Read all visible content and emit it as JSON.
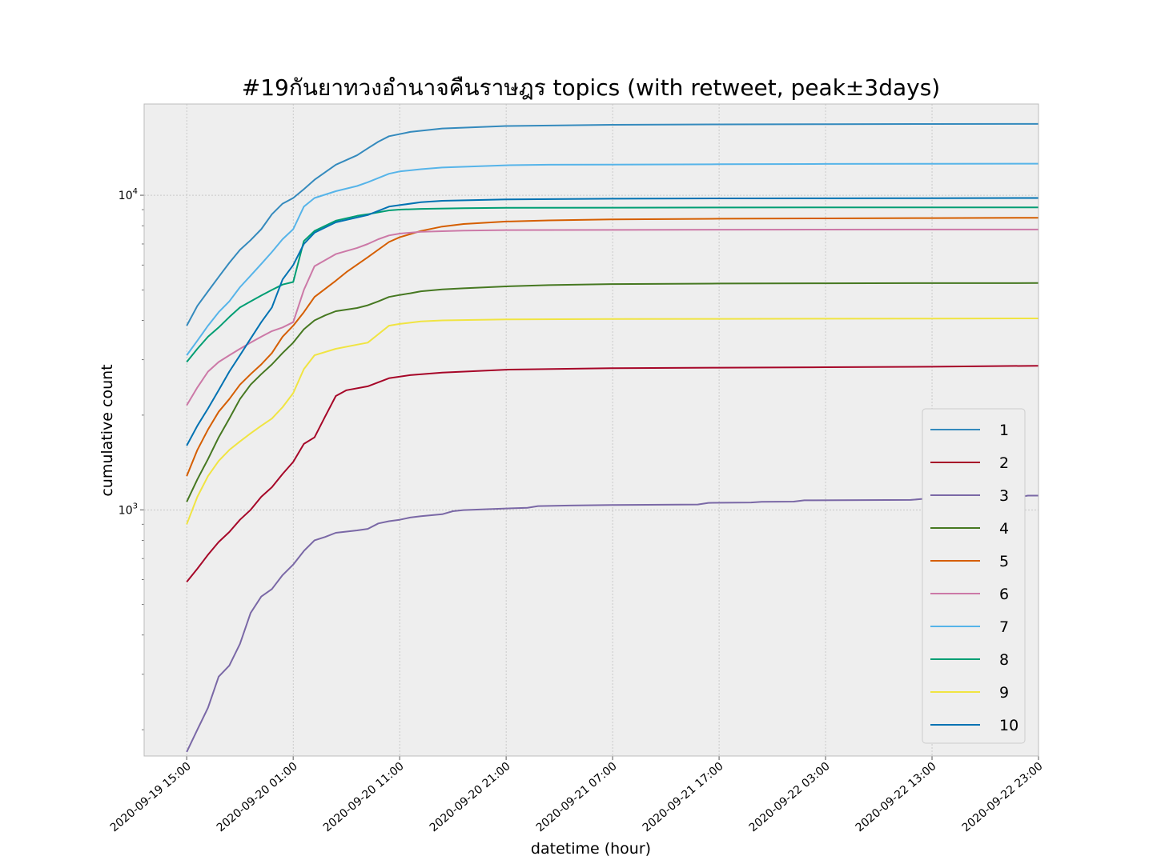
{
  "chart_data": {
    "type": "line",
    "title": "#19กันยาทวงอำนาจคืนราษฎร topics (with retweet, peak±3days)",
    "xlabel": "datetime (hour)",
    "ylabel": "cumulative count",
    "yscale": "log",
    "ylim": [
      165,
      19500
    ],
    "xlim_hours": [
      -4,
      80
    ],
    "x_start": "2020-09-19 15:00",
    "grid": true,
    "legend_position": "right",
    "x_ticks": [
      {
        "label": "2020-09-19 15:00",
        "hour": 0
      },
      {
        "label": "2020-09-20 01:00",
        "hour": 10
      },
      {
        "label": "2020-09-20 11:00",
        "hour": 20
      },
      {
        "label": "2020-09-20 21:00",
        "hour": 30
      },
      {
        "label": "2020-09-21 07:00",
        "hour": 40
      },
      {
        "label": "2020-09-21 17:00",
        "hour": 50
      },
      {
        "label": "2020-09-22 03:00",
        "hour": 60
      },
      {
        "label": "2020-09-22 13:00",
        "hour": 70
      },
      {
        "label": "2020-09-22 23:00",
        "hour": 80
      }
    ],
    "y_ticks": [
      {
        "base": "10",
        "exp": "3",
        "value": 1000
      },
      {
        "base": "10",
        "exp": "4",
        "value": 10000
      }
    ],
    "series": [
      {
        "name": "1",
        "color": "#348ABD",
        "points": [
          [
            0,
            3850
          ],
          [
            1,
            4450
          ],
          [
            2,
            4950
          ],
          [
            3,
            5500
          ],
          [
            4,
            6100
          ],
          [
            5,
            6700
          ],
          [
            6,
            7200
          ],
          [
            7,
            7800
          ],
          [
            8,
            8700
          ],
          [
            9,
            9400
          ],
          [
            10,
            9800
          ],
          [
            11,
            10450
          ],
          [
            12,
            11200
          ],
          [
            14,
            12500
          ],
          [
            16,
            13400
          ],
          [
            17,
            14100
          ],
          [
            18,
            14800
          ],
          [
            19,
            15400
          ],
          [
            21,
            15900
          ],
          [
            24,
            16300
          ],
          [
            30,
            16600
          ],
          [
            40,
            16750
          ],
          [
            50,
            16800
          ],
          [
            60,
            16820
          ],
          [
            70,
            16840
          ],
          [
            80,
            16850
          ]
        ]
      },
      {
        "name": "2",
        "color": "#A60628",
        "points": [
          [
            0,
            590
          ],
          [
            1,
            650
          ],
          [
            2,
            720
          ],
          [
            3,
            790
          ],
          [
            4,
            850
          ],
          [
            5,
            930
          ],
          [
            6,
            1000
          ],
          [
            7,
            1100
          ],
          [
            8,
            1180
          ],
          [
            9,
            1300
          ],
          [
            10,
            1420
          ],
          [
            11,
            1620
          ],
          [
            12,
            1700
          ],
          [
            13,
            1980
          ],
          [
            14,
            2300
          ],
          [
            15,
            2400
          ],
          [
            17,
            2470
          ],
          [
            19,
            2620
          ],
          [
            21,
            2680
          ],
          [
            24,
            2730
          ],
          [
            30,
            2790
          ],
          [
            40,
            2820
          ],
          [
            50,
            2830
          ],
          [
            60,
            2840
          ],
          [
            70,
            2850
          ],
          [
            80,
            2870
          ]
        ]
      },
      {
        "name": "3",
        "color": "#7A68A6",
        "points": [
          [
            0,
            170
          ],
          [
            1,
            200
          ],
          [
            2,
            235
          ],
          [
            3,
            295
          ],
          [
            4,
            320
          ],
          [
            5,
            375
          ],
          [
            6,
            470
          ],
          [
            7,
            530
          ],
          [
            8,
            560
          ],
          [
            9,
            620
          ],
          [
            10,
            670
          ],
          [
            11,
            740
          ],
          [
            12,
            800
          ],
          [
            13,
            820
          ],
          [
            14,
            845
          ],
          [
            16,
            860
          ],
          [
            17,
            870
          ],
          [
            18,
            905
          ],
          [
            19,
            920
          ],
          [
            20,
            930
          ],
          [
            21,
            945
          ],
          [
            22,
            955
          ],
          [
            24,
            968
          ],
          [
            25,
            990
          ],
          [
            26,
            998
          ],
          [
            30,
            1010
          ],
          [
            32,
            1015
          ],
          [
            33,
            1028
          ],
          [
            36,
            1032
          ],
          [
            40,
            1036
          ],
          [
            48,
            1040
          ],
          [
            49,
            1052
          ],
          [
            53,
            1055
          ],
          [
            54,
            1060
          ],
          [
            57,
            1062
          ],
          [
            58,
            1072
          ],
          [
            68,
            1075
          ],
          [
            69,
            1082
          ],
          [
            71,
            1083
          ],
          [
            73,
            1090
          ],
          [
            78,
            1095
          ],
          [
            79,
            1110
          ],
          [
            80,
            1110
          ]
        ]
      },
      {
        "name": "4",
        "color": "#467821",
        "points": [
          [
            0,
            1060
          ],
          [
            1,
            1250
          ],
          [
            2,
            1450
          ],
          [
            3,
            1700
          ],
          [
            4,
            1950
          ],
          [
            5,
            2250
          ],
          [
            6,
            2500
          ],
          [
            7,
            2700
          ],
          [
            8,
            2900
          ],
          [
            9,
            3150
          ],
          [
            10,
            3400
          ],
          [
            11,
            3750
          ],
          [
            12,
            4000
          ],
          [
            13,
            4150
          ],
          [
            14,
            4280
          ],
          [
            16,
            4380
          ],
          [
            17,
            4470
          ],
          [
            18,
            4600
          ],
          [
            19,
            4750
          ],
          [
            20,
            4820
          ],
          [
            21,
            4880
          ],
          [
            22,
            4950
          ],
          [
            24,
            5020
          ],
          [
            26,
            5060
          ],
          [
            30,
            5130
          ],
          [
            34,
            5180
          ],
          [
            40,
            5220
          ],
          [
            50,
            5240
          ],
          [
            60,
            5250
          ],
          [
            70,
            5255
          ],
          [
            80,
            5260
          ]
        ]
      },
      {
        "name": "5",
        "color": "#D55E00",
        "points": [
          [
            0,
            1280
          ],
          [
            1,
            1550
          ],
          [
            2,
            1800
          ],
          [
            3,
            2050
          ],
          [
            4,
            2250
          ],
          [
            5,
            2500
          ],
          [
            6,
            2700
          ],
          [
            7,
            2900
          ],
          [
            8,
            3150
          ],
          [
            9,
            3550
          ],
          [
            10,
            3850
          ],
          [
            11,
            4250
          ],
          [
            12,
            4750
          ],
          [
            14,
            5350
          ],
          [
            15,
            5700
          ],
          [
            17,
            6350
          ],
          [
            19,
            7100
          ],
          [
            20,
            7350
          ],
          [
            22,
            7700
          ],
          [
            24,
            7950
          ],
          [
            26,
            8100
          ],
          [
            30,
            8250
          ],
          [
            34,
            8320
          ],
          [
            40,
            8380
          ],
          [
            50,
            8420
          ],
          [
            60,
            8440
          ],
          [
            70,
            8460
          ],
          [
            80,
            8480
          ]
        ]
      },
      {
        "name": "6",
        "color": "#CC79A7",
        "points": [
          [
            0,
            2150
          ],
          [
            1,
            2450
          ],
          [
            2,
            2750
          ],
          [
            3,
            2950
          ],
          [
            4,
            3100
          ],
          [
            5,
            3250
          ],
          [
            6,
            3400
          ],
          [
            7,
            3550
          ],
          [
            8,
            3700
          ],
          [
            9,
            3800
          ],
          [
            10,
            3950
          ],
          [
            11,
            5000
          ],
          [
            12,
            5950
          ],
          [
            14,
            6500
          ],
          [
            16,
            6800
          ],
          [
            17,
            7000
          ],
          [
            18,
            7250
          ],
          [
            19,
            7450
          ],
          [
            20,
            7550
          ],
          [
            22,
            7650
          ],
          [
            26,
            7720
          ],
          [
            30,
            7750
          ],
          [
            40,
            7760
          ],
          [
            50,
            7770
          ],
          [
            60,
            7775
          ],
          [
            70,
            7780
          ],
          [
            80,
            7780
          ]
        ]
      },
      {
        "name": "7",
        "color": "#56B4E9",
        "points": [
          [
            0,
            3100
          ],
          [
            1,
            3450
          ],
          [
            2,
            3850
          ],
          [
            3,
            4250
          ],
          [
            4,
            4600
          ],
          [
            5,
            5100
          ],
          [
            6,
            5550
          ],
          [
            7,
            6050
          ],
          [
            8,
            6600
          ],
          [
            9,
            7250
          ],
          [
            10,
            7800
          ],
          [
            11,
            9200
          ],
          [
            12,
            9800
          ],
          [
            14,
            10300
          ],
          [
            16,
            10700
          ],
          [
            17,
            11000
          ],
          [
            19,
            11700
          ],
          [
            20,
            11900
          ],
          [
            22,
            12100
          ],
          [
            24,
            12250
          ],
          [
            27,
            12350
          ],
          [
            30,
            12450
          ],
          [
            34,
            12500
          ],
          [
            40,
            12520
          ],
          [
            50,
            12550
          ],
          [
            60,
            12580
          ],
          [
            70,
            12590
          ],
          [
            80,
            12600
          ]
        ]
      },
      {
        "name": "8",
        "color": "#009E73",
        "points": [
          [
            0,
            2950
          ],
          [
            1,
            3250
          ],
          [
            2,
            3550
          ],
          [
            3,
            3800
          ],
          [
            4,
            4100
          ],
          [
            5,
            4400
          ],
          [
            6,
            4600
          ],
          [
            7,
            4800
          ],
          [
            8,
            5000
          ],
          [
            9,
            5200
          ],
          [
            10,
            5300
          ],
          [
            11,
            7150
          ],
          [
            12,
            7700
          ],
          [
            14,
            8300
          ],
          [
            16,
            8600
          ],
          [
            17,
            8700
          ],
          [
            19,
            8950
          ],
          [
            20,
            9000
          ],
          [
            22,
            9050
          ],
          [
            26,
            9100
          ],
          [
            30,
            9120
          ],
          [
            40,
            9130
          ],
          [
            50,
            9140
          ],
          [
            60,
            9145
          ],
          [
            70,
            9148
          ],
          [
            80,
            9150
          ]
        ]
      },
      {
        "name": "9",
        "color": "#F0E442",
        "points": [
          [
            0,
            900
          ],
          [
            1,
            1100
          ],
          [
            2,
            1280
          ],
          [
            3,
            1430
          ],
          [
            4,
            1550
          ],
          [
            5,
            1650
          ],
          [
            6,
            1750
          ],
          [
            7,
            1850
          ],
          [
            8,
            1950
          ],
          [
            9,
            2120
          ],
          [
            10,
            2350
          ],
          [
            11,
            2800
          ],
          [
            12,
            3100
          ],
          [
            14,
            3250
          ],
          [
            16,
            3350
          ],
          [
            17,
            3400
          ],
          [
            19,
            3850
          ],
          [
            20,
            3900
          ],
          [
            22,
            3970
          ],
          [
            24,
            4000
          ],
          [
            30,
            4030
          ],
          [
            40,
            4040
          ],
          [
            50,
            4045
          ],
          [
            60,
            4050
          ],
          [
            70,
            4055
          ],
          [
            80,
            4060
          ]
        ]
      },
      {
        "name": "10",
        "color": "#0072B2",
        "points": [
          [
            0,
            1600
          ],
          [
            1,
            1850
          ],
          [
            2,
            2100
          ],
          [
            3,
            2400
          ],
          [
            4,
            2750
          ],
          [
            5,
            3100
          ],
          [
            6,
            3500
          ],
          [
            7,
            3950
          ],
          [
            8,
            4400
          ],
          [
            9,
            5400
          ],
          [
            10,
            6000
          ],
          [
            11,
            7000
          ],
          [
            12,
            7600
          ],
          [
            14,
            8200
          ],
          [
            16,
            8500
          ],
          [
            17,
            8650
          ],
          [
            19,
            9200
          ],
          [
            20,
            9300
          ],
          [
            22,
            9500
          ],
          [
            24,
            9600
          ],
          [
            30,
            9700
          ],
          [
            40,
            9750
          ],
          [
            50,
            9770
          ],
          [
            60,
            9780
          ],
          [
            70,
            9790
          ],
          [
            80,
            9800
          ]
        ]
      }
    ]
  }
}
